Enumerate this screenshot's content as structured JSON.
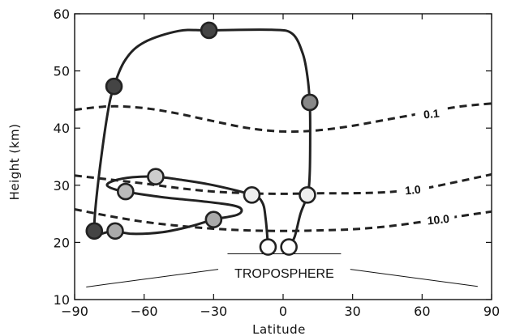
{
  "chart_data": {
    "type": "line",
    "title": "",
    "xlabel": "Latitude",
    "ylabel": "Height (km)",
    "xlim": [
      -90,
      90
    ],
    "ylim": [
      10,
      60
    ],
    "xticks": [
      -90,
      -60,
      -30,
      0,
      30,
      60,
      90
    ],
    "yticks": [
      10,
      20,
      30,
      40,
      50,
      60
    ],
    "xtick_labels": [
      "−90",
      "−60",
      "−30",
      "0",
      "30",
      "60",
      "90"
    ],
    "ytick_labels": [
      "10",
      "20",
      "30",
      "40",
      "50",
      "60"
    ],
    "contours": [
      {
        "label": "0.1",
        "label_at": [
          64,
          42.5
        ],
        "x": [
          -90,
          -75,
          -60,
          -45,
          -30,
          -15,
          0,
          15,
          30,
          45,
          60,
          75,
          90
        ],
        "y": [
          43.2,
          43.8,
          43.5,
          42.5,
          41.2,
          40.0,
          39.4,
          39.6,
          40.4,
          41.5,
          42.6,
          43.7,
          44.3
        ]
      },
      {
        "label": "1.0",
        "label_at": [
          56,
          29.2
        ],
        "x": [
          -90,
          -75,
          -60,
          -45,
          -30,
          -15,
          0,
          15,
          30,
          45,
          60,
          75,
          90
        ],
        "y": [
          31.7,
          31.0,
          30.3,
          29.5,
          28.9,
          28.6,
          28.5,
          28.6,
          28.6,
          28.8,
          29.4,
          30.6,
          31.9
        ]
      },
      {
        "label": "10.0",
        "label_at": [
          67,
          24.0
        ],
        "x": [
          -90,
          -75,
          -60,
          -45,
          -30,
          -15,
          0,
          15,
          30,
          45,
          60,
          75,
          90
        ],
        "y": [
          25.8,
          24.6,
          23.6,
          22.9,
          22.4,
          22.1,
          22.0,
          22.1,
          22.3,
          22.8,
          23.6,
          24.5,
          25.4
        ]
      }
    ],
    "trajectory_path": [
      {
        "x": 2.5,
        "y": 19.2
      },
      {
        "x": 5,
        "y": 21
      },
      {
        "x": 7.5,
        "y": 25
      },
      {
        "x": 10.5,
        "y": 28.3
      },
      {
        "x": 11.5,
        "y": 32
      },
      {
        "x": 11.7,
        "y": 40
      },
      {
        "x": 11.5,
        "y": 44.5
      },
      {
        "x": 10.5,
        "y": 49
      },
      {
        "x": 8.5,
        "y": 53
      },
      {
        "x": 4,
        "y": 56.5
      },
      {
        "x": -5,
        "y": 57.2
      },
      {
        "x": -32,
        "y": 57.1
      },
      {
        "x": -45,
        "y": 57
      },
      {
        "x": -60,
        "y": 55
      },
      {
        "x": -68,
        "y": 52
      },
      {
        "x": -73,
        "y": 47.3
      },
      {
        "x": -76,
        "y": 42
      },
      {
        "x": -80,
        "y": 30
      },
      {
        "x": -81.5,
        "y": 22
      },
      {
        "x": -79,
        "y": 21.5
      },
      {
        "x": -73,
        "y": 22
      },
      {
        "x": -65,
        "y": 21.5
      },
      {
        "x": -52,
        "y": 21.8
      },
      {
        "x": -40,
        "y": 22.8
      },
      {
        "x": -30,
        "y": 24
      },
      {
        "x": -20,
        "y": 24.8
      },
      {
        "x": -18,
        "y": 25.8
      },
      {
        "x": -22,
        "y": 26.5
      },
      {
        "x": -35,
        "y": 27.2
      },
      {
        "x": -50,
        "y": 27.8
      },
      {
        "x": -64,
        "y": 28.6
      },
      {
        "x": -72,
        "y": 29.2
      },
      {
        "x": -76,
        "y": 30
      },
      {
        "x": -73,
        "y": 30.8
      },
      {
        "x": -65,
        "y": 31.4
      },
      {
        "x": -55,
        "y": 31.5
      },
      {
        "x": -45,
        "y": 31
      },
      {
        "x": -30,
        "y": 30
      },
      {
        "x": -13.5,
        "y": 28.3
      },
      {
        "x": -9,
        "y": 27
      },
      {
        "x": -7.5,
        "y": 24
      },
      {
        "x": -6.5,
        "y": 19.2
      }
    ],
    "markers": [
      {
        "x": -32,
        "y": 57.1,
        "fill": "#444444"
      },
      {
        "x": -73,
        "y": 47.3,
        "fill": "#444444"
      },
      {
        "x": 11.5,
        "y": 44.5,
        "fill": "#888888"
      },
      {
        "x": -55,
        "y": 31.5,
        "fill": "#cccccc"
      },
      {
        "x": -68,
        "y": 28.9,
        "fill": "#bbbbbb"
      },
      {
        "x": -13.5,
        "y": 28.3,
        "fill": "#eeeeee"
      },
      {
        "x": 10.5,
        "y": 28.3,
        "fill": "#eeeeee"
      },
      {
        "x": -30,
        "y": 24.0,
        "fill": "#aaaaaa"
      },
      {
        "x": -72.5,
        "y": 22.0,
        "fill": "#aaaaaa"
      },
      {
        "x": -81.5,
        "y": 22.0,
        "fill": "#444444"
      },
      {
        "x": -6.5,
        "y": 19.2,
        "fill": "#ffffff"
      },
      {
        "x": 2.5,
        "y": 19.2,
        "fill": "#ffffff"
      }
    ],
    "tropopause_segments": [
      {
        "x": [
          -24,
          25
        ],
        "y": [
          18.0,
          18.0
        ]
      },
      {
        "x": [
          -85,
          -28
        ],
        "y": [
          12.2,
          15.3
        ]
      },
      {
        "x": [
          29,
          84
        ],
        "y": [
          15.3,
          12.3
        ]
      }
    ],
    "region_label": {
      "text": "TROPOSPHERE",
      "x": 0.5,
      "y": 13.8
    },
    "colors": {
      "axis": "#111111",
      "line": "#222222",
      "marker_stroke": "#222222"
    }
  }
}
